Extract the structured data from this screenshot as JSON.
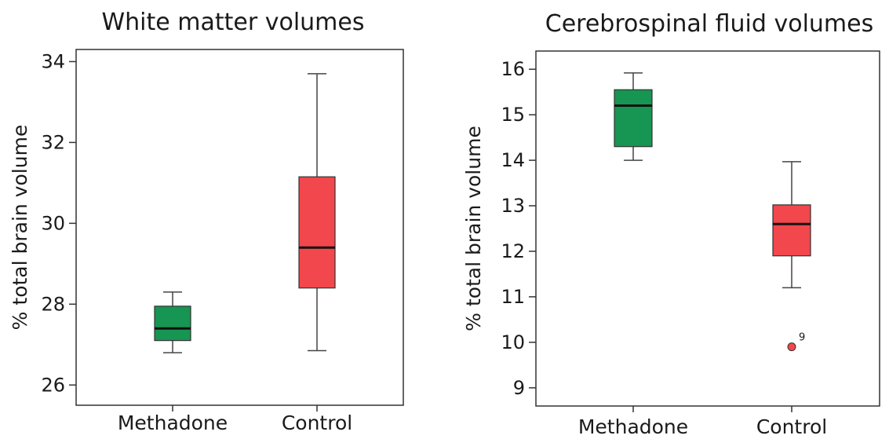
{
  "colors": {
    "methadone": "#179552",
    "control": "#f2474c",
    "median": "#111111",
    "axis": "#333333",
    "whisker": "#444444"
  },
  "chart_data": [
    {
      "type": "box",
      "title": "White matter volumes",
      "xlabel": "",
      "ylabel": "% total brain volume",
      "categories": [
        "Methadone",
        "Control"
      ],
      "ylim": [
        25.5,
        34.3
      ],
      "yticks": [
        26,
        28,
        30,
        32,
        34
      ],
      "grid": false,
      "boxes": [
        {
          "category": "Methadone",
          "min": 26.8,
          "q1": 27.1,
          "median": 27.4,
          "q3": 27.95,
          "max": 28.3,
          "outliers": []
        },
        {
          "category": "Control",
          "min": 26.85,
          "q1": 28.4,
          "median": 29.4,
          "q3": 31.15,
          "max": 33.7,
          "outliers": []
        }
      ]
    },
    {
      "type": "box",
      "title": "Cerebrospinal fluid volumes",
      "xlabel": "",
      "ylabel": "% total brain volume",
      "categories": [
        "Methadone",
        "Control"
      ],
      "ylim": [
        8.6,
        16.4
      ],
      "yticks": [
        9,
        10,
        11,
        12,
        13,
        14,
        15,
        16
      ],
      "grid": false,
      "boxes": [
        {
          "category": "Methadone",
          "min": 14.0,
          "q1": 14.3,
          "median": 15.2,
          "q3": 15.55,
          "max": 15.92,
          "outliers": []
        },
        {
          "category": "Control",
          "min": 11.2,
          "q1": 11.9,
          "median": 12.6,
          "q3": 13.02,
          "max": 13.97,
          "outliers": [
            {
              "value": 9.9,
              "label": "9"
            }
          ]
        }
      ]
    }
  ]
}
